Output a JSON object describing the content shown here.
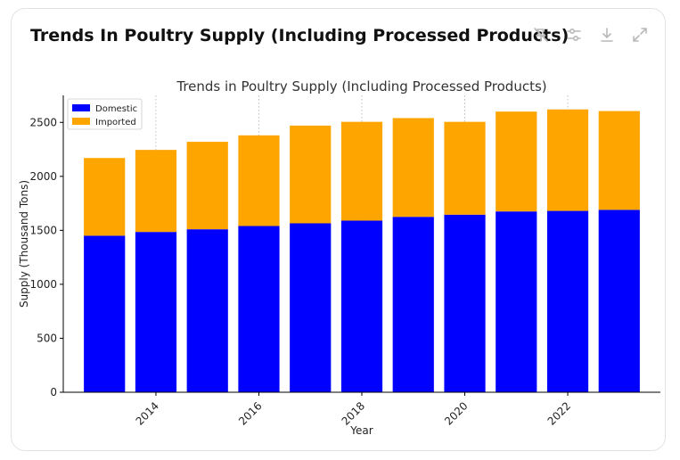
{
  "card": {
    "title": "Trends In Poultry Supply (Including Processed Products)"
  },
  "toolbar": {
    "icons": [
      "pin-off-icon",
      "sliders-icon",
      "download-icon",
      "expand-icon"
    ],
    "icon_color": "#b9b9b9"
  },
  "chart_data": {
    "type": "bar",
    "stacked": true,
    "title": "Trends in Poultry Supply (Including Processed Products)",
    "xlabel": "Year",
    "ylabel": "Supply (Thousand Tons)",
    "x": [
      2013,
      2014,
      2015,
      2016,
      2017,
      2018,
      2019,
      2020,
      2021,
      2022,
      2023
    ],
    "xticks": [
      "2014",
      "2016",
      "2018",
      "2020",
      "2022"
    ],
    "yticks": [
      "0",
      "500",
      "1000",
      "1500",
      "2000",
      "2500"
    ],
    "ylim": [
      0,
      2750
    ],
    "xlim": [
      2012.2,
      2023.8
    ],
    "grid": "x-dotted",
    "legend_position": "top-left",
    "series": [
      {
        "name": "Domestic",
        "color": "#0000ff",
        "values": [
          1450,
          1485,
          1510,
          1540,
          1565,
          1590,
          1625,
          1645,
          1675,
          1680,
          1690
        ]
      },
      {
        "name": "Imported",
        "color": "#ffa500",
        "values": [
          720,
          760,
          810,
          840,
          905,
          915,
          915,
          860,
          925,
          940,
          915
        ]
      }
    ]
  }
}
